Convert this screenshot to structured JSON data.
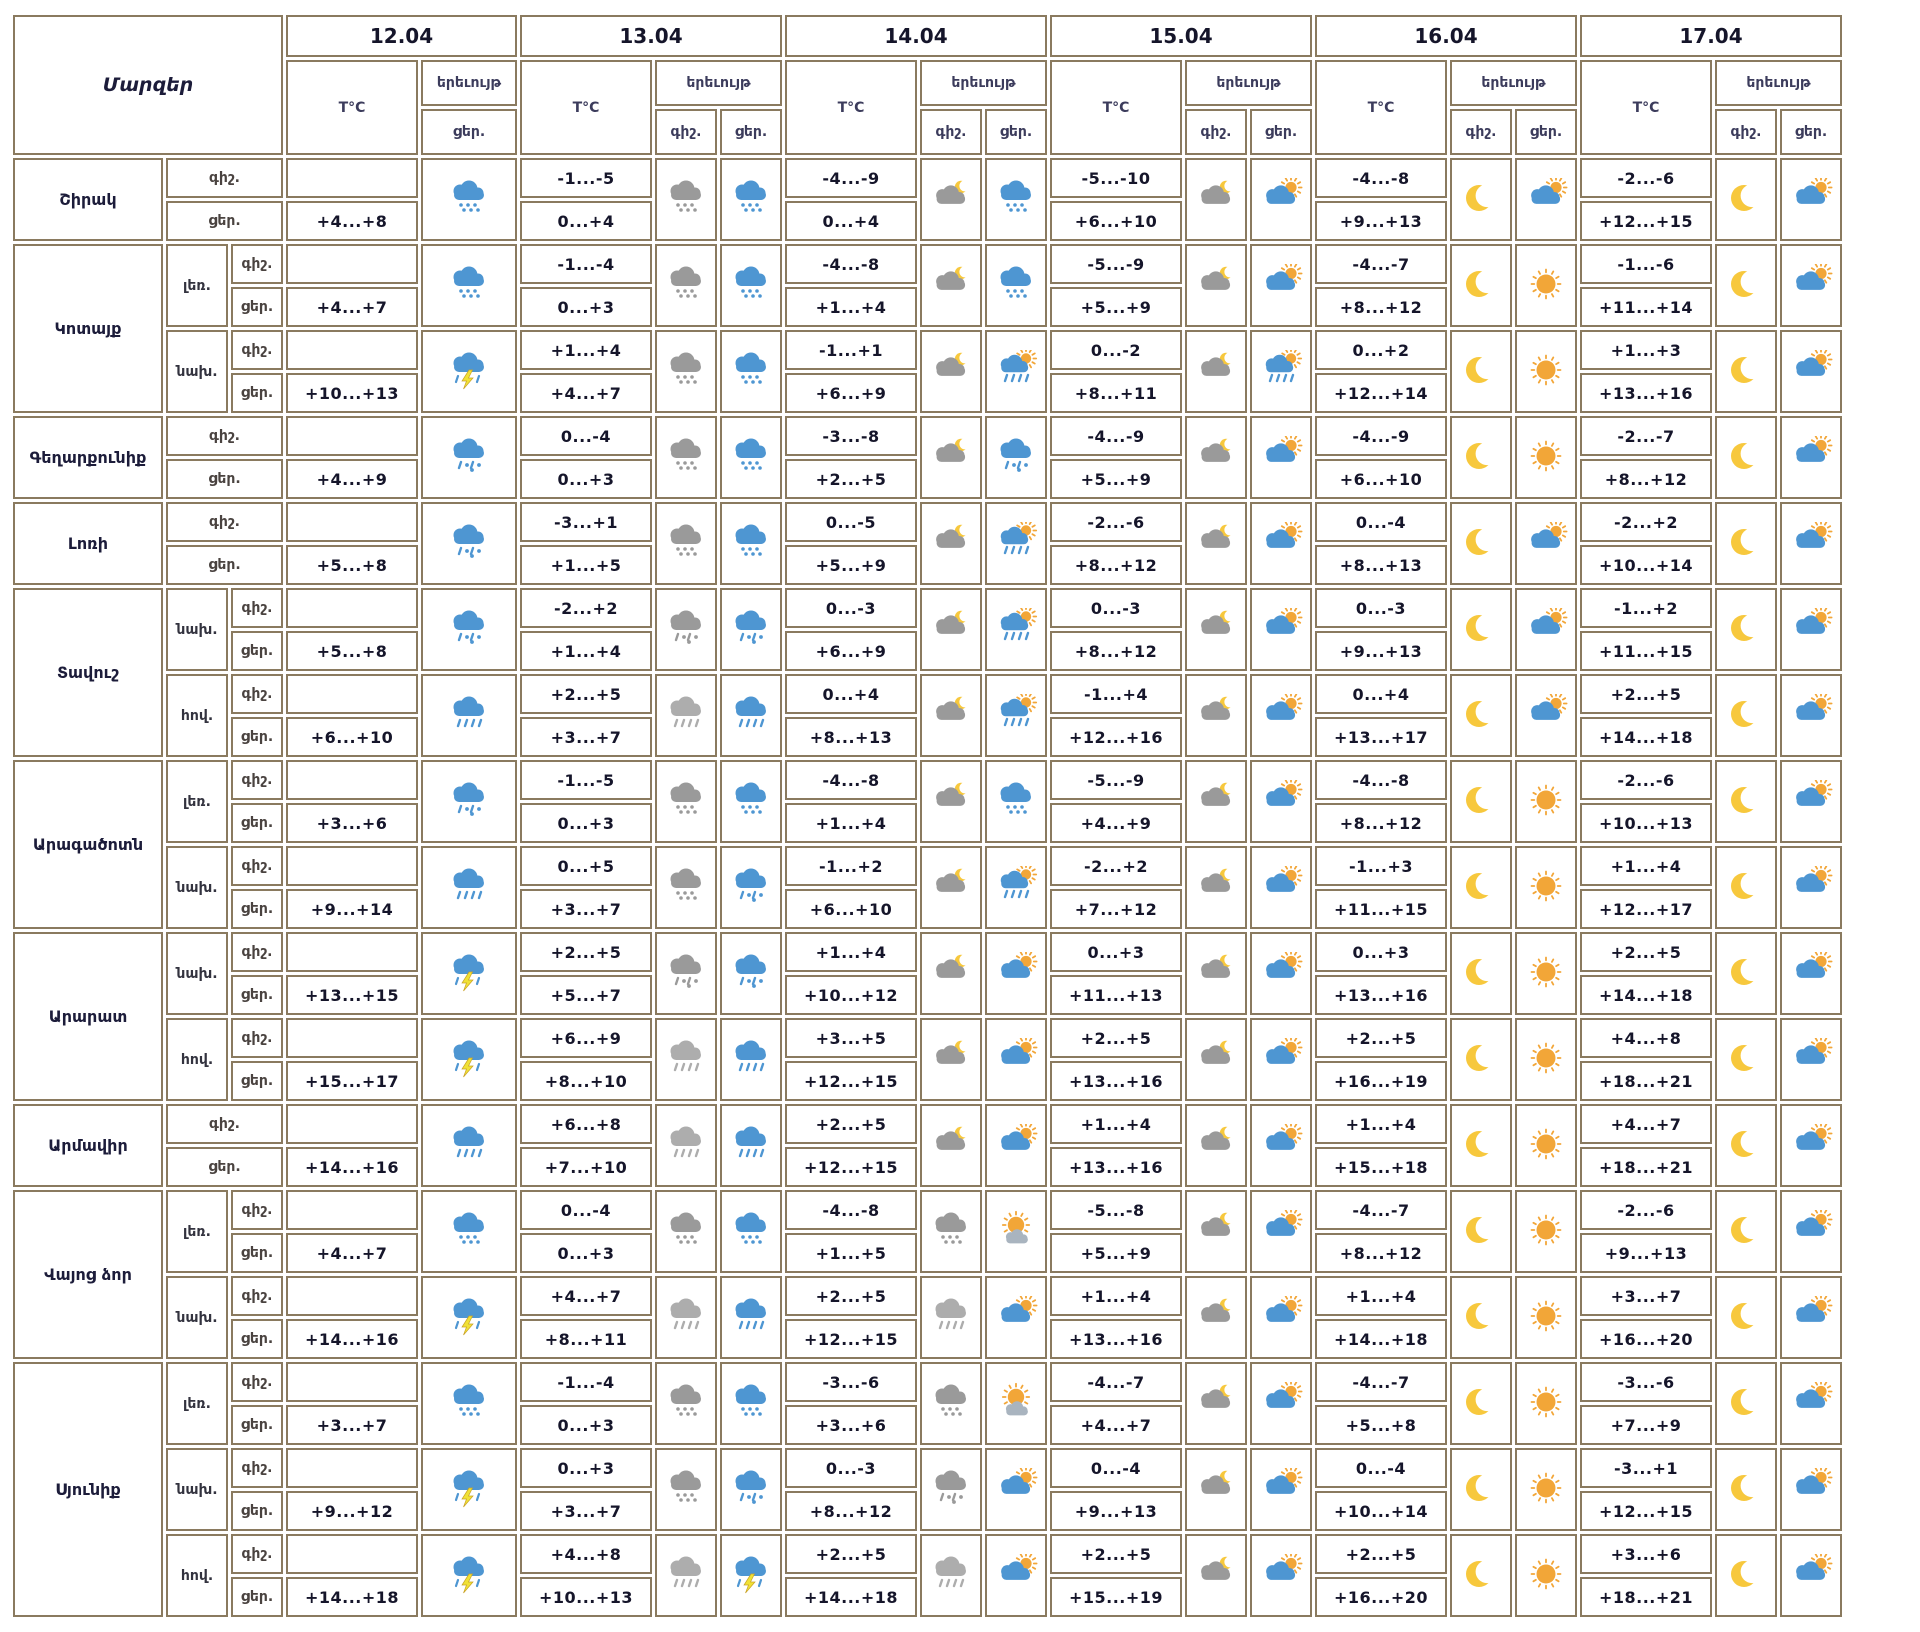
{
  "header": {
    "regions_label": "Մարզեր",
    "temp_label": "T°C",
    "phenomenon_label": "երեւույթ",
    "night_label": "գիշ.",
    "day_label": "ցեր.",
    "dates": [
      "12.04",
      "13.04",
      "14.04",
      "15.04",
      "16.04",
      "17.04"
    ]
  },
  "colors": {
    "border": "#8a7a5f",
    "cloud_blue": "#4E96D2",
    "cloud_gray": "#9A9A9A",
    "cloud_light_gray": "#ADADAD",
    "sun": "#F2A638",
    "moon": "#F7C83D",
    "lightning": "#F0E135",
    "text": "#15152a"
  },
  "icon_legend": {
    "snow-blue": "blue cloud with snow",
    "snow-gray": "gray cloud with snow",
    "sleet-blue": "blue cloud with rain and snow",
    "sleet-gray": "gray cloud with rain and snow",
    "rain-blue": "blue cloud with rain",
    "rain-gray": "gray cloud with rain",
    "storm": "cloud with lightning and rain",
    "cloud-moon": "cloudy night with moon",
    "cloud-sun": "partly cloudy with sun",
    "rain-sun": "sun behind rain cloud",
    "sun-cloud": "mostly sunny with small cloud",
    "moon": "clear night crescent moon",
    "sun": "clear sunny"
  },
  "regions": [
    {
      "name": "Շիրակ",
      "rows": [
        {
          "zone": null,
          "temps_night": [
            "",
            "-1...-5",
            "-4...-9",
            "-5...-10",
            "-4...-8",
            "-2...-6"
          ],
          "temps_day": [
            "+4...+8",
            "0...+4",
            "0...+4",
            "+6...+10",
            "+9...+13",
            "+12...+15"
          ],
          "icon_first": "snow-blue",
          "icons_night": [
            "snow-gray",
            "cloud-moon",
            "cloud-moon",
            "moon",
            "moon"
          ],
          "icons_day": [
            "snow-blue",
            "snow-blue",
            "cloud-sun",
            "cloud-sun",
            "cloud-sun"
          ]
        }
      ]
    },
    {
      "name": "Կոտայք",
      "rows": [
        {
          "zone": "լեռ.",
          "temps_night": [
            "",
            "-1...-4",
            "-4...-8",
            "-5...-9",
            "-4...-7",
            "-1...-6"
          ],
          "temps_day": [
            "+4...+7",
            "0...+3",
            "+1...+4",
            "+5...+9",
            "+8...+12",
            "+11...+14"
          ],
          "icon_first": "snow-blue",
          "icons_night": [
            "snow-gray",
            "cloud-moon",
            "cloud-moon",
            "moon",
            "moon"
          ],
          "icons_day": [
            "snow-blue",
            "snow-blue",
            "cloud-sun",
            "sun",
            "cloud-sun"
          ]
        },
        {
          "zone": "նախ.",
          "temps_night": [
            "",
            "+1...+4",
            "-1...+1",
            "0...-2",
            "0...+2",
            "+1...+3"
          ],
          "temps_day": [
            "+10...+13",
            "+4...+7",
            "+6...+9",
            "+8...+11",
            "+12...+14",
            "+13...+16"
          ],
          "icon_first": "storm",
          "icons_night": [
            "snow-gray",
            "cloud-moon",
            "cloud-moon",
            "moon",
            "moon"
          ],
          "icons_day": [
            "snow-blue",
            "rain-sun",
            "rain-sun",
            "sun",
            "cloud-sun"
          ]
        }
      ]
    },
    {
      "name": "Գեղարքունիք",
      "rows": [
        {
          "zone": null,
          "temps_night": [
            "",
            "0...-4",
            "-3...-8",
            "-4...-9",
            "-4...-9",
            "-2...-7"
          ],
          "temps_day": [
            "+4...+9",
            "0...+3",
            "+2...+5",
            "+5...+9",
            "+6...+10",
            "+8...+12"
          ],
          "icon_first": "sleet-blue",
          "icons_night": [
            "snow-gray",
            "cloud-moon",
            "cloud-moon",
            "moon",
            "moon"
          ],
          "icons_day": [
            "snow-blue",
            "sleet-blue",
            "cloud-sun",
            "sun",
            "cloud-sun"
          ]
        }
      ]
    },
    {
      "name": "Լոռի",
      "rows": [
        {
          "zone": null,
          "temps_night": [
            "",
            "-3...+1",
            "0...-5",
            "-2...-6",
            "0...-4",
            "-2...+2"
          ],
          "temps_day": [
            "+5...+8",
            "+1...+5",
            "+5...+9",
            "+8...+12",
            "+8...+13",
            "+10...+14"
          ],
          "icon_first": "sleet-blue",
          "icons_night": [
            "snow-gray",
            "cloud-moon",
            "cloud-moon",
            "moon",
            "moon"
          ],
          "icons_day": [
            "snow-blue",
            "rain-sun",
            "cloud-sun",
            "cloud-sun",
            "cloud-sun"
          ]
        }
      ]
    },
    {
      "name": "Տավուշ",
      "rows": [
        {
          "zone": "նախ.",
          "temps_night": [
            "",
            "-2...+2",
            "0...-3",
            "0...-3",
            "0...-3",
            "-1...+2"
          ],
          "temps_day": [
            "+5...+8",
            "+1...+4",
            "+6...+9",
            "+8...+12",
            "+9...+13",
            "+11...+15"
          ],
          "icon_first": "sleet-blue",
          "icons_night": [
            "sleet-gray",
            "cloud-moon",
            "cloud-moon",
            "moon",
            "moon"
          ],
          "icons_day": [
            "sleet-blue",
            "rain-sun",
            "cloud-sun",
            "cloud-sun",
            "cloud-sun"
          ]
        },
        {
          "zone": "հով.",
          "temps_night": [
            "",
            "+2...+5",
            "0...+4",
            "-1...+4",
            "0...+4",
            "+2...+5"
          ],
          "temps_day": [
            "+6...+10",
            "+3...+7",
            "+8...+13",
            "+12...+16",
            "+13...+17",
            "+14...+18"
          ],
          "icon_first": "rain-blue",
          "icons_night": [
            "rain-gray",
            "cloud-moon",
            "cloud-moon",
            "moon",
            "moon"
          ],
          "icons_day": [
            "rain-blue",
            "rain-sun",
            "cloud-sun",
            "cloud-sun",
            "cloud-sun"
          ]
        }
      ]
    },
    {
      "name": "Արագածոտն",
      "rows": [
        {
          "zone": "լեռ.",
          "temps_night": [
            "",
            "-1...-5",
            "-4...-8",
            "-5...-9",
            "-4...-8",
            "-2...-6"
          ],
          "temps_day": [
            "+3...+6",
            "0...+3",
            "+1...+4",
            "+4...+9",
            "+8...+12",
            "+10...+13"
          ],
          "icon_first": "sleet-blue",
          "icons_night": [
            "snow-gray",
            "cloud-moon",
            "cloud-moon",
            "moon",
            "moon"
          ],
          "icons_day": [
            "snow-blue",
            "snow-blue",
            "cloud-sun",
            "sun",
            "cloud-sun"
          ]
        },
        {
          "zone": "նախ.",
          "temps_night": [
            "",
            "0...+5",
            "-1...+2",
            "-2...+2",
            "-1...+3",
            "+1...+4"
          ],
          "temps_day": [
            "+9...+14",
            "+3...+7",
            "+6...+10",
            "+7...+12",
            "+11...+15",
            "+12...+17"
          ],
          "icon_first": "rain-blue",
          "icons_night": [
            "snow-gray",
            "cloud-moon",
            "cloud-moon",
            "moon",
            "moon"
          ],
          "icons_day": [
            "sleet-blue",
            "rain-sun",
            "cloud-sun",
            "sun",
            "cloud-sun"
          ]
        }
      ]
    },
    {
      "name": "Արարատ",
      "rows": [
        {
          "zone": "նախ.",
          "temps_night": [
            "",
            "+2...+5",
            "+1...+4",
            "0...+3",
            "0...+3",
            "+2...+5"
          ],
          "temps_day": [
            "+13...+15",
            "+5...+7",
            "+10...+12",
            "+11...+13",
            "+13...+16",
            "+14...+18"
          ],
          "icon_first": "storm",
          "icons_night": [
            "sleet-gray",
            "cloud-moon",
            "cloud-moon",
            "moon",
            "moon"
          ],
          "icons_day": [
            "sleet-blue",
            "cloud-sun",
            "cloud-sun",
            "sun",
            "cloud-sun"
          ]
        },
        {
          "zone": "հով.",
          "temps_night": [
            "",
            "+6...+9",
            "+3...+5",
            "+2...+5",
            "+2...+5",
            "+4...+8"
          ],
          "temps_day": [
            "+15...+17",
            "+8...+10",
            "+12...+15",
            "+13...+16",
            "+16...+19",
            "+18...+21"
          ],
          "icon_first": "storm",
          "icons_night": [
            "rain-gray",
            "cloud-moon",
            "cloud-moon",
            "moon",
            "moon"
          ],
          "icons_day": [
            "rain-blue",
            "cloud-sun",
            "cloud-sun",
            "sun",
            "cloud-sun"
          ]
        }
      ]
    },
    {
      "name": "Արմավիր",
      "rows": [
        {
          "zone": null,
          "temps_night": [
            "",
            "+6...+8",
            "+2...+5",
            "+1...+4",
            "+1...+4",
            "+4...+7"
          ],
          "temps_day": [
            "+14...+16",
            "+7...+10",
            "+12...+15",
            "+13...+16",
            "+15...+18",
            "+18...+21"
          ],
          "icon_first": "rain-blue",
          "icons_night": [
            "rain-gray",
            "cloud-moon",
            "cloud-moon",
            "moon",
            "moon"
          ],
          "icons_day": [
            "rain-blue",
            "cloud-sun",
            "cloud-sun",
            "sun",
            "cloud-sun"
          ]
        }
      ]
    },
    {
      "name": "Վայոց ձոր",
      "rows": [
        {
          "zone": "լեռ.",
          "temps_night": [
            "",
            "0...-4",
            "-4...-8",
            "-5...-8",
            "-4...-7",
            "-2...-6"
          ],
          "temps_day": [
            "+4...+7",
            "0...+3",
            "+1...+5",
            "+5...+9",
            "+8...+12",
            "+9...+13"
          ],
          "icon_first": "snow-blue",
          "icons_night": [
            "snow-gray",
            "snow-gray",
            "cloud-moon",
            "moon",
            "moon"
          ],
          "icons_day": [
            "snow-blue",
            "sun-cloud",
            "cloud-sun",
            "sun",
            "cloud-sun"
          ]
        },
        {
          "zone": "նախ.",
          "temps_night": [
            "",
            "+4...+7",
            "+2...+5",
            "+1...+4",
            "+1...+4",
            "+3...+7"
          ],
          "temps_day": [
            "+14...+16",
            "+8...+11",
            "+12...+15",
            "+13...+16",
            "+14...+18",
            "+16...+20"
          ],
          "icon_first": "storm",
          "icons_night": [
            "rain-gray",
            "rain-gray",
            "cloud-moon",
            "moon",
            "moon"
          ],
          "icons_day": [
            "rain-blue",
            "cloud-sun",
            "cloud-sun",
            "sun",
            "cloud-sun"
          ]
        }
      ]
    },
    {
      "name": "Սյունիք",
      "rows": [
        {
          "zone": "լեռ.",
          "temps_night": [
            "",
            "-1...-4",
            "-3...-6",
            "-4...-7",
            "-4...-7",
            "-3...-6"
          ],
          "temps_day": [
            "+3...+7",
            "0...+3",
            "+3...+6",
            "+4...+7",
            "+5...+8",
            "+7...+9"
          ],
          "icon_first": "snow-blue",
          "icons_night": [
            "snow-gray",
            "snow-gray",
            "cloud-moon",
            "moon",
            "moon"
          ],
          "icons_day": [
            "snow-blue",
            "sun-cloud",
            "cloud-sun",
            "sun",
            "cloud-sun"
          ]
        },
        {
          "zone": "նախ.",
          "temps_night": [
            "",
            "0...+3",
            "0...-3",
            "0...-4",
            "0...-4",
            "-3...+1"
          ],
          "temps_day": [
            "+9...+12",
            "+3...+7",
            "+8...+12",
            "+9...+13",
            "+10...+14",
            "+12...+15"
          ],
          "icon_first": "storm",
          "icons_night": [
            "snow-gray",
            "sleet-gray",
            "cloud-moon",
            "moon",
            "moon"
          ],
          "icons_day": [
            "sleet-blue",
            "cloud-sun",
            "cloud-sun",
            "sun",
            "cloud-sun"
          ]
        },
        {
          "zone": "հով.",
          "temps_night": [
            "",
            "+4...+8",
            "+2...+5",
            "+2...+5",
            "+2...+5",
            "+3...+6"
          ],
          "temps_day": [
            "+14...+18",
            "+10...+13",
            "+14...+18",
            "+15...+19",
            "+16...+20",
            "+18...+21"
          ],
          "icon_first": "storm",
          "icons_night": [
            "rain-gray",
            "rain-gray",
            "cloud-moon",
            "moon",
            "moon"
          ],
          "icons_day": [
            "storm",
            "cloud-sun",
            "cloud-sun",
            "sun",
            "cloud-sun"
          ]
        }
      ]
    }
  ]
}
